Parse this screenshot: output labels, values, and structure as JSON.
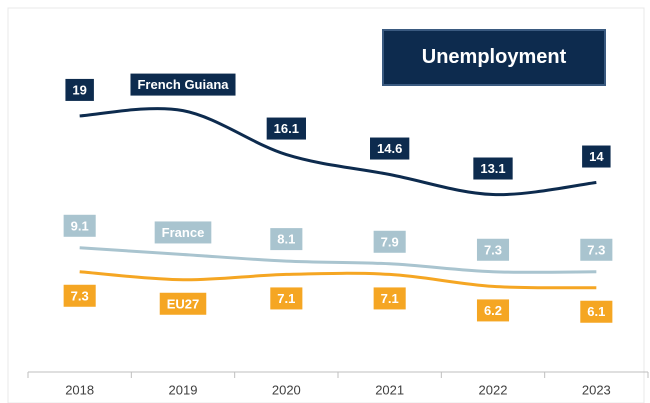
{
  "chart_data": {
    "type": "line",
    "title": "Unemployment",
    "categories": [
      "2018",
      "2019",
      "2020",
      "2021",
      "2022",
      "2023"
    ],
    "ylim": [
      0,
      25
    ],
    "series": [
      {
        "name": "French Guiana",
        "color": "#0d2b4e",
        "values": [
          19,
          19.4,
          16.1,
          14.6,
          13.1,
          14
        ],
        "value_labels": [
          "19",
          null,
          "16.1",
          "14.6",
          "13.1",
          "14"
        ]
      },
      {
        "name": "France",
        "color": "#a9c4cf",
        "values": [
          9.1,
          8.6,
          8.1,
          7.9,
          7.3,
          7.3
        ],
        "value_labels": [
          "9.1",
          null,
          "8.1",
          "7.9",
          "7.3",
          "7.3"
        ]
      },
      {
        "name": "EU27",
        "color": "#f5a623",
        "values": [
          7.3,
          6.7,
          7.1,
          7.1,
          6.2,
          6.1
        ],
        "value_labels": [
          "7.3",
          null,
          "7.1",
          "7.1",
          "6.2",
          "6.1"
        ]
      }
    ]
  }
}
